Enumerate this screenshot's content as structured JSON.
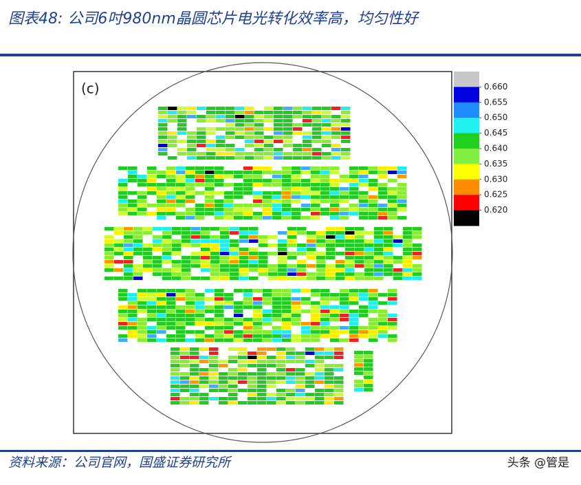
{
  "header": {
    "title": "图表48: 公司6吋980nm晶圆芯片电光转化效率高，均匀性好"
  },
  "figure": {
    "panel_label": "(c)",
    "colorbar": {
      "colors": [
        "#c8c8c8",
        "#0000e0",
        "#1e8cff",
        "#20f0f0",
        "#20d020",
        "#80f040",
        "#ffff00",
        "#ff8c00",
        "#ff0000",
        "#000000"
      ],
      "ticks": [
        {
          "value": 0.66,
          "label": "0.660"
        },
        {
          "value": 0.655,
          "label": "0.655"
        },
        {
          "value": 0.65,
          "label": "0.650"
        },
        {
          "value": 0.645,
          "label": "0.645"
        },
        {
          "value": 0.64,
          "label": "0.640"
        },
        {
          "value": 0.635,
          "label": "0.635"
        },
        {
          "value": 0.63,
          "label": "0.630"
        },
        {
          "value": 0.625,
          "label": "0.625"
        },
        {
          "value": 0.62,
          "label": "0.620"
        }
      ]
    }
  },
  "footer": {
    "source": "资料来源：公司官网，国盛证券研究所",
    "watermark": "头条 @管是"
  }
}
